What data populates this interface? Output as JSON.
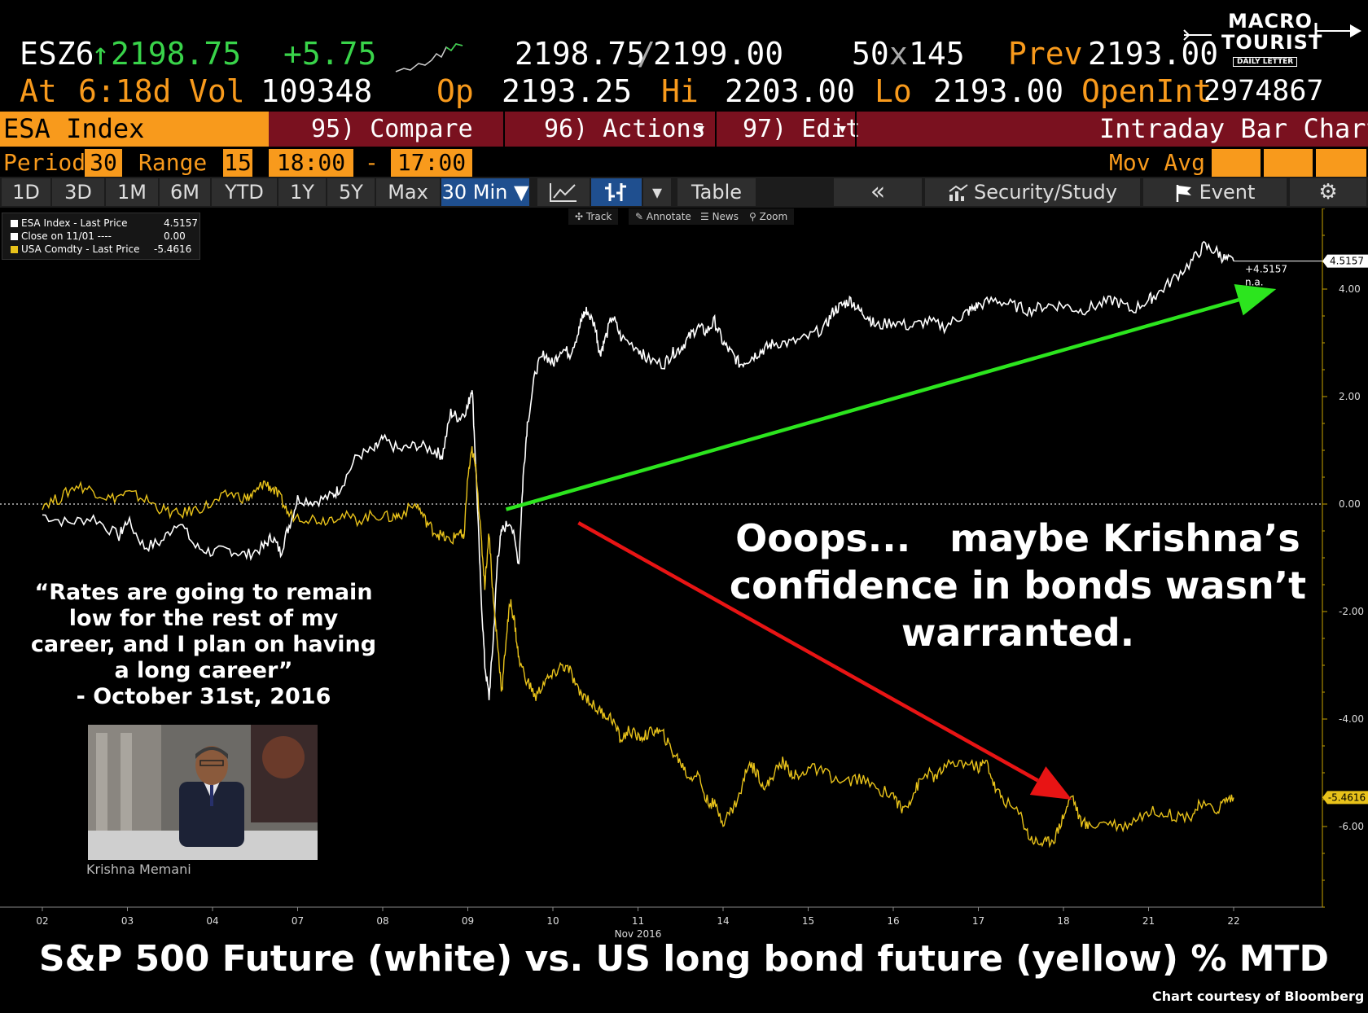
{
  "quote": {
    "ticker": "ESZ6",
    "arrow": "↑",
    "last": "2198.75",
    "change": "+5.75",
    "bid_ask_1": "2198.75",
    "bid_ask_sep": "/",
    "bid_ask_2": "2199.00",
    "size_1": "50",
    "size_sep": "x",
    "size_2": "145",
    "prev_label": "Prev",
    "prev": "2193.00",
    "at_label": "At",
    "at_value": "6:18d",
    "vol_label": "Vol",
    "vol": "109348",
    "op_label": "Op",
    "op": "2193.25",
    "hi_label": "Hi",
    "hi": "2203.00",
    "lo_label": "Lo",
    "lo": "2193.00",
    "openint_label": "OpenInt",
    "openint": "2974867"
  },
  "logo": {
    "line1": "MACRO",
    "line2": "TOURIST",
    "line3": "DAILY LETTER"
  },
  "function_bar": {
    "security": "ESA Index",
    "compare": "95) Compare",
    "actions": "96) Actions",
    "edit": "97) Edit",
    "dropdown_glyph": "▾",
    "view": "Intraday Bar Chart"
  },
  "period_bar": {
    "period_label": "Period",
    "period": "30",
    "range_label": "Range",
    "range": "15",
    "start": "18:00",
    "dash": "-",
    "end": "17:00",
    "movavg_label": "Mov Avg"
  },
  "range_tabs": [
    "1D",
    "3D",
    "1M",
    "6M",
    "YTD",
    "1Y",
    "5Y",
    "Max",
    "30 Min ▼"
  ],
  "toolbar2": {
    "table": "Table",
    "back": "«",
    "security_study": "Security/Study",
    "event": "Event",
    "gear": "⚙"
  },
  "chart_tools": {
    "track": "✣ Track",
    "annotate": "✎ Annotate",
    "news": "☰ News",
    "zoom": "⚲ Zoom"
  },
  "legend": [
    {
      "label": "ESA Index - Last Price",
      "value": "4.5157",
      "color": "#ffffff"
    },
    {
      "label": "Close on 11/01 ----",
      "value": "0.00",
      "color": "#ffffff"
    },
    {
      "label": "USA Comdty - Last Price",
      "value": "-5.4616",
      "color": "#e8c21a"
    }
  ],
  "annotation": {
    "line1": "Ooops...   maybe Krishna’s",
    "line2": "confidence in bonds wasn’t",
    "line3": "warranted."
  },
  "side_quote": {
    "line1": "“Rates are going to remain",
    "line2": "low for the rest of my",
    "line3": "career, and I plan on having",
    "line4": "a long career”",
    "line5": "- October 31st, 2016"
  },
  "photo_caption": "Krishna Memani",
  "bottom_title": "S&P 500 Future (white) vs. US long bond future (yellow) % MTD",
  "courtesy": "Chart courtesy of Bloomberg",
  "chart_data": {
    "type": "line",
    "x_tick_labels": [
      "02",
      "03",
      "04",
      "07",
      "08",
      "09",
      "10",
      "11",
      "14",
      "15",
      "16",
      "17",
      "18",
      "21",
      "22"
    ],
    "x_sub_label": "Nov 2016",
    "y_tick_labels": [
      "4.00",
      "2.00",
      "0.00",
      "-2.00",
      "-4.00",
      "-6.00"
    ],
    "y_ticks": [
      4,
      2,
      0,
      -2,
      -4,
      -6
    ],
    "ylim": [
      -7.5,
      5.5
    ],
    "last_labels": {
      "white": "4.5157",
      "yellow": "-5.4616",
      "white_sub1": "+4.5157",
      "white_sub2": "n.a."
    },
    "series": [
      {
        "color": "#ffffff",
        "points": [
          [
            0,
            -0.2
          ],
          [
            0.3,
            -0.35
          ],
          [
            0.6,
            -0.25
          ],
          [
            0.9,
            -0.6
          ],
          [
            1.0,
            -0.3
          ],
          [
            1.2,
            -0.8
          ],
          [
            1.4,
            -0.7
          ],
          [
            1.6,
            -0.3
          ],
          [
            1.8,
            -0.8
          ],
          [
            2.0,
            -0.9
          ],
          [
            2.2,
            -0.85
          ],
          [
            2.4,
            -0.95
          ],
          [
            2.6,
            -0.8
          ],
          [
            2.7,
            -0.6
          ],
          [
            2.8,
            -0.9
          ],
          [
            2.9,
            -0.4
          ],
          [
            3.0,
            0.1
          ],
          [
            3.2,
            0.05
          ],
          [
            3.4,
            0.15
          ],
          [
            3.5,
            0.3
          ],
          [
            3.7,
            0.9
          ],
          [
            3.9,
            1.0
          ],
          [
            4.0,
            1.2
          ],
          [
            4.2,
            1.0
          ],
          [
            4.4,
            1.1
          ],
          [
            4.6,
            1.0
          ],
          [
            4.7,
            0.9
          ],
          [
            4.8,
            1.7
          ],
          [
            4.9,
            1.6
          ],
          [
            5.0,
            1.8
          ],
          [
            5.05,
            2.2
          ],
          [
            5.1,
            0.5
          ],
          [
            5.15,
            -1.5
          ],
          [
            5.2,
            -3.0
          ],
          [
            5.25,
            -3.6
          ],
          [
            5.3,
            -2.5
          ],
          [
            5.35,
            -1.0
          ],
          [
            5.4,
            -0.5
          ],
          [
            5.5,
            -0.3
          ],
          [
            5.6,
            -1.1
          ],
          [
            5.65,
            0.5
          ],
          [
            5.7,
            1.5
          ],
          [
            5.8,
            2.5
          ],
          [
            5.9,
            2.8
          ],
          [
            6.0,
            2.6
          ],
          [
            6.1,
            2.9
          ],
          [
            6.2,
            2.8
          ],
          [
            6.3,
            3.2
          ],
          [
            6.35,
            3.5
          ],
          [
            6.4,
            3.6
          ],
          [
            6.5,
            3.3
          ],
          [
            6.55,
            2.8
          ],
          [
            6.6,
            3.0
          ],
          [
            6.7,
            3.5
          ],
          [
            6.8,
            3.1
          ],
          [
            7.0,
            2.9
          ],
          [
            7.1,
            2.7
          ],
          [
            7.3,
            2.6
          ],
          [
            7.4,
            2.8
          ],
          [
            7.5,
            2.9
          ],
          [
            7.6,
            3.1
          ],
          [
            7.7,
            3.3
          ],
          [
            7.8,
            3.2
          ],
          [
            7.9,
            3.4
          ],
          [
            8.0,
            3.0
          ],
          [
            8.1,
            2.8
          ],
          [
            8.2,
            2.6
          ],
          [
            8.3,
            2.7
          ],
          [
            8.4,
            2.8
          ],
          [
            8.5,
            2.9
          ],
          [
            8.6,
            3.0
          ],
          [
            8.8,
            3.0
          ],
          [
            9.0,
            3.1
          ],
          [
            9.2,
            3.3
          ],
          [
            9.3,
            3.6
          ],
          [
            9.4,
            3.7
          ],
          [
            9.5,
            3.8
          ],
          [
            9.6,
            3.6
          ],
          [
            9.7,
            3.5
          ],
          [
            9.8,
            3.3
          ],
          [
            10.0,
            3.4
          ],
          [
            10.2,
            3.3
          ],
          [
            10.4,
            3.4
          ],
          [
            10.6,
            3.3
          ],
          [
            10.8,
            3.5
          ],
          [
            10.9,
            3.6
          ],
          [
            11.0,
            3.7
          ],
          [
            11.2,
            3.8
          ],
          [
            11.4,
            3.7
          ],
          [
            11.6,
            3.6
          ],
          [
            11.8,
            3.7
          ],
          [
            12.0,
            3.7
          ],
          [
            12.2,
            3.6
          ],
          [
            12.4,
            3.7
          ],
          [
            12.6,
            3.8
          ],
          [
            12.8,
            3.6
          ],
          [
            13.0,
            3.8
          ],
          [
            13.1,
            3.9
          ],
          [
            13.3,
            4.2
          ],
          [
            13.5,
            4.5
          ],
          [
            13.65,
            4.8
          ],
          [
            13.8,
            4.7
          ],
          [
            13.9,
            4.55
          ],
          [
            14.0,
            4.52
          ]
        ]
      },
      {
        "color": "#e8c21a",
        "points": [
          [
            0,
            0.0
          ],
          [
            0.2,
            0.1
          ],
          [
            0.4,
            0.35
          ],
          [
            0.6,
            0.25
          ],
          [
            0.8,
            0.1
          ],
          [
            1.0,
            0.2
          ],
          [
            1.2,
            0.1
          ],
          [
            1.4,
            -0.1
          ],
          [
            1.6,
            -0.2
          ],
          [
            1.8,
            -0.1
          ],
          [
            2.0,
            0.0
          ],
          [
            2.2,
            0.2
          ],
          [
            2.4,
            0.1
          ],
          [
            2.5,
            0.2
          ],
          [
            2.6,
            0.4
          ],
          [
            2.7,
            0.3
          ],
          [
            2.8,
            0.1
          ],
          [
            2.9,
            -0.2
          ],
          [
            3.1,
            -0.25
          ],
          [
            3.3,
            -0.3
          ],
          [
            3.5,
            -0.2
          ],
          [
            3.7,
            -0.3
          ],
          [
            3.9,
            -0.2
          ],
          [
            4.1,
            -0.25
          ],
          [
            4.2,
            -0.2
          ],
          [
            4.4,
            0.0
          ],
          [
            4.5,
            -0.3
          ],
          [
            4.6,
            -0.5
          ],
          [
            4.7,
            -0.6
          ],
          [
            4.8,
            -0.7
          ],
          [
            4.9,
            -0.5
          ],
          [
            4.95,
            -0.7
          ],
          [
            5.0,
            0.5
          ],
          [
            5.05,
            1.0
          ],
          [
            5.1,
            0.6
          ],
          [
            5.15,
            -0.5
          ],
          [
            5.2,
            -1.5
          ],
          [
            5.25,
            -0.5
          ],
          [
            5.3,
            -1.8
          ],
          [
            5.35,
            -2.6
          ],
          [
            5.4,
            -3.5
          ],
          [
            5.45,
            -2.5
          ],
          [
            5.5,
            -1.8
          ],
          [
            5.55,
            -2.2
          ],
          [
            5.6,
            -2.9
          ],
          [
            5.7,
            -3.3
          ],
          [
            5.8,
            -3.6
          ],
          [
            5.9,
            -3.3
          ],
          [
            6.0,
            -3.2
          ],
          [
            6.1,
            -3.0
          ],
          [
            6.2,
            -3.1
          ],
          [
            6.3,
            -3.5
          ],
          [
            6.4,
            -3.6
          ],
          [
            6.5,
            -3.8
          ],
          [
            6.6,
            -3.9
          ],
          [
            6.7,
            -4.0
          ],
          [
            6.8,
            -4.4
          ],
          [
            6.9,
            -4.2
          ],
          [
            7.0,
            -4.35
          ],
          [
            7.1,
            -4.3
          ],
          [
            7.2,
            -4.2
          ],
          [
            7.3,
            -4.3
          ],
          [
            7.4,
            -4.6
          ],
          [
            7.5,
            -4.8
          ],
          [
            7.6,
            -5.1
          ],
          [
            7.7,
            -5.0
          ],
          [
            7.8,
            -5.5
          ],
          [
            7.9,
            -5.6
          ],
          [
            8.0,
            -5.9
          ],
          [
            8.1,
            -5.7
          ],
          [
            8.2,
            -5.4
          ],
          [
            8.3,
            -4.8
          ],
          [
            8.4,
            -5.0
          ],
          [
            8.5,
            -5.3
          ],
          [
            8.6,
            -5.0
          ],
          [
            8.7,
            -4.8
          ],
          [
            8.8,
            -5.0
          ],
          [
            8.9,
            -5.1
          ],
          [
            9.0,
            -4.9
          ],
          [
            9.2,
            -5.0
          ],
          [
            9.4,
            -5.2
          ],
          [
            9.6,
            -5.1
          ],
          [
            9.8,
            -5.3
          ],
          [
            10.0,
            -5.4
          ],
          [
            10.1,
            -5.7
          ],
          [
            10.2,
            -5.5
          ],
          [
            10.3,
            -5.2
          ],
          [
            10.4,
            -5.0
          ],
          [
            10.5,
            -5.1
          ],
          [
            10.6,
            -4.9
          ],
          [
            10.8,
            -4.8
          ],
          [
            11.0,
            -4.9
          ],
          [
            11.1,
            -4.8
          ],
          [
            11.2,
            -5.3
          ],
          [
            11.3,
            -5.5
          ],
          [
            11.5,
            -5.8
          ],
          [
            11.6,
            -6.2
          ],
          [
            11.7,
            -6.3
          ],
          [
            11.8,
            -6.3
          ],
          [
            11.9,
            -6.2
          ],
          [
            12.0,
            -5.8
          ],
          [
            12.1,
            -5.4
          ],
          [
            12.2,
            -5.9
          ],
          [
            12.3,
            -6.0
          ],
          [
            12.5,
            -5.9
          ],
          [
            12.7,
            -6.0
          ],
          [
            12.9,
            -5.8
          ],
          [
            13.1,
            -5.7
          ],
          [
            13.3,
            -5.8
          ],
          [
            13.5,
            -5.8
          ],
          [
            13.6,
            -5.6
          ],
          [
            13.8,
            -5.7
          ],
          [
            13.9,
            -5.5
          ],
          [
            14.0,
            -5.46
          ]
        ]
      }
    ],
    "arrows": [
      {
        "color": "#2ce51e",
        "from": [
          5.45,
          -0.1
        ],
        "to": [
          14.5,
          4.0
        ]
      },
      {
        "color": "#e81414",
        "from": [
          6.3,
          -0.35
        ],
        "to": [
          12.1,
          -5.5
        ]
      }
    ]
  }
}
